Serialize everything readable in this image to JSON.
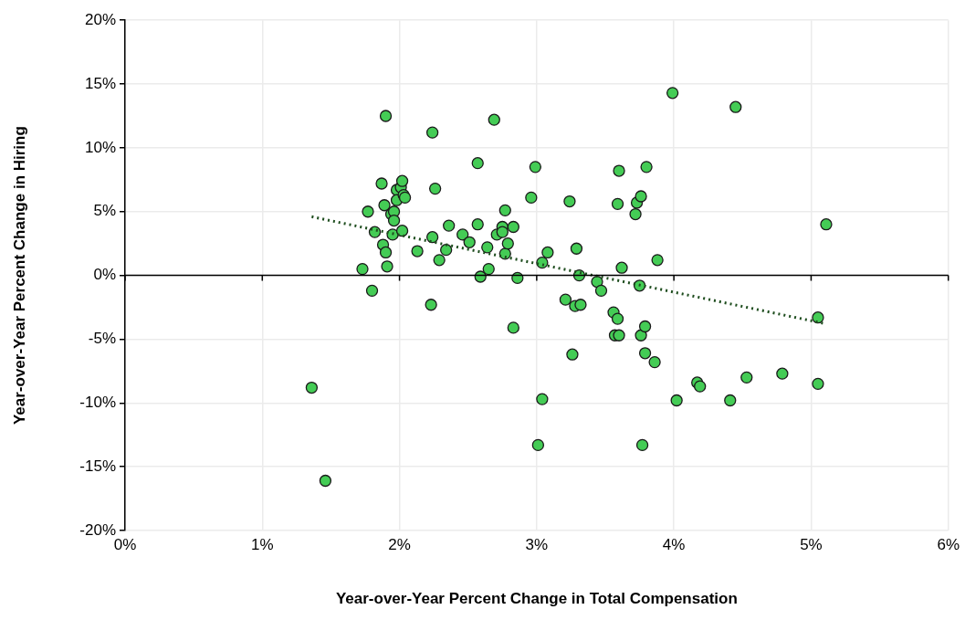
{
  "chart_data": {
    "type": "scatter",
    "xlabel": "Year-over-Year Percent Change in Total Compensation",
    "ylabel": "Year-over-Year Percent Change in Hiring",
    "xlim": [
      0,
      6
    ],
    "ylim": [
      -20,
      20
    ],
    "xticks": [
      {
        "value": 0,
        "label": "0%"
      },
      {
        "value": 1,
        "label": "1%"
      },
      {
        "value": 2,
        "label": "2%"
      },
      {
        "value": 3,
        "label": "3%"
      },
      {
        "value": 4,
        "label": "4%"
      },
      {
        "value": 5,
        "label": "5%"
      },
      {
        "value": 6,
        "label": "6%"
      }
    ],
    "yticks": [
      {
        "value": -20,
        "label": "-20%"
      },
      {
        "value": -15,
        "label": "-15%"
      },
      {
        "value": -10,
        "label": "-10%"
      },
      {
        "value": -5,
        "label": "-5%"
      },
      {
        "value": 0,
        "label": "0%"
      },
      {
        "value": 5,
        "label": "5%"
      },
      {
        "value": 10,
        "label": "10%"
      },
      {
        "value": 15,
        "label": "15%"
      },
      {
        "value": 20,
        "label": "20%"
      }
    ],
    "grid": true,
    "marker": "circle",
    "ref_lines": [
      {
        "axis": "y",
        "value": 0,
        "color": "#000000"
      }
    ],
    "series": [
      {
        "color": "#44cc55",
        "x": [
          1.36,
          1.46,
          1.73,
          1.77,
          1.8,
          1.82,
          1.87,
          1.88,
          1.89,
          1.9,
          1.91,
          1.9,
          1.94,
          1.95,
          1.96,
          1.96,
          1.98,
          1.98,
          2.01,
          2.02,
          2.03,
          2.04,
          2.02,
          2.13,
          2.23,
          2.24,
          2.24,
          2.26,
          2.29,
          2.34,
          2.36,
          2.46,
          2.51,
          2.57,
          2.57,
          2.59,
          2.64,
          2.65,
          2.69,
          2.71,
          2.75,
          2.75,
          2.77,
          2.77,
          2.79,
          2.83,
          2.83,
          2.86,
          2.96,
          2.99,
          3.01,
          3.04,
          3.04,
          3.08,
          3.21,
          3.24,
          3.26,
          3.28,
          3.29,
          3.31,
          3.32,
          3.44,
          3.47,
          3.56,
          3.57,
          3.59,
          3.59,
          3.6,
          3.6,
          3.62,
          3.72,
          3.73,
          3.75,
          3.76,
          3.76,
          3.77,
          3.79,
          3.79,
          3.8,
          3.86,
          3.88,
          3.99,
          4.02,
          4.17,
          4.19,
          4.41,
          4.45,
          4.53,
          4.79,
          5.05,
          5.05,
          5.11
        ],
        "values": [
          -8.8,
          -16.1,
          0.5,
          5.0,
          -1.2,
          3.4,
          7.2,
          2.4,
          5.5,
          1.8,
          0.7,
          12.5,
          4.8,
          3.2,
          5.0,
          4.3,
          6.7,
          5.9,
          6.9,
          7.4,
          6.3,
          6.1,
          3.5,
          1.9,
          -2.3,
          11.2,
          3.0,
          6.8,
          1.2,
          2.0,
          3.9,
          3.2,
          2.6,
          8.8,
          4.0,
          -0.1,
          2.2,
          0.5,
          12.2,
          3.2,
          3.8,
          3.4,
          5.1,
          1.7,
          2.5,
          3.8,
          -4.1,
          -0.2,
          6.1,
          8.5,
          -13.3,
          1.0,
          -9.7,
          1.8,
          -1.9,
          5.8,
          -6.2,
          -2.4,
          2.1,
          0.0,
          -2.3,
          -0.5,
          -1.2,
          -2.9,
          -4.7,
          5.6,
          -3.4,
          8.2,
          -4.7,
          0.6,
          4.8,
          5.7,
          -0.8,
          6.2,
          -4.7,
          -13.3,
          -4.0,
          -6.1,
          8.5,
          -6.8,
          1.2,
          14.3,
          -9.8,
          -8.4,
          -8.7,
          -9.8,
          13.2,
          -8.0,
          -7.7,
          -3.3,
          -8.5,
          4.0
        ]
      },
      {
        "type": "line",
        "color": "#1e4d1e",
        "x": [
          1.36,
          5.11
        ],
        "values": [
          4.6,
          -3.8
        ],
        "line_style": "dotted",
        "marker": "none"
      }
    ]
  }
}
